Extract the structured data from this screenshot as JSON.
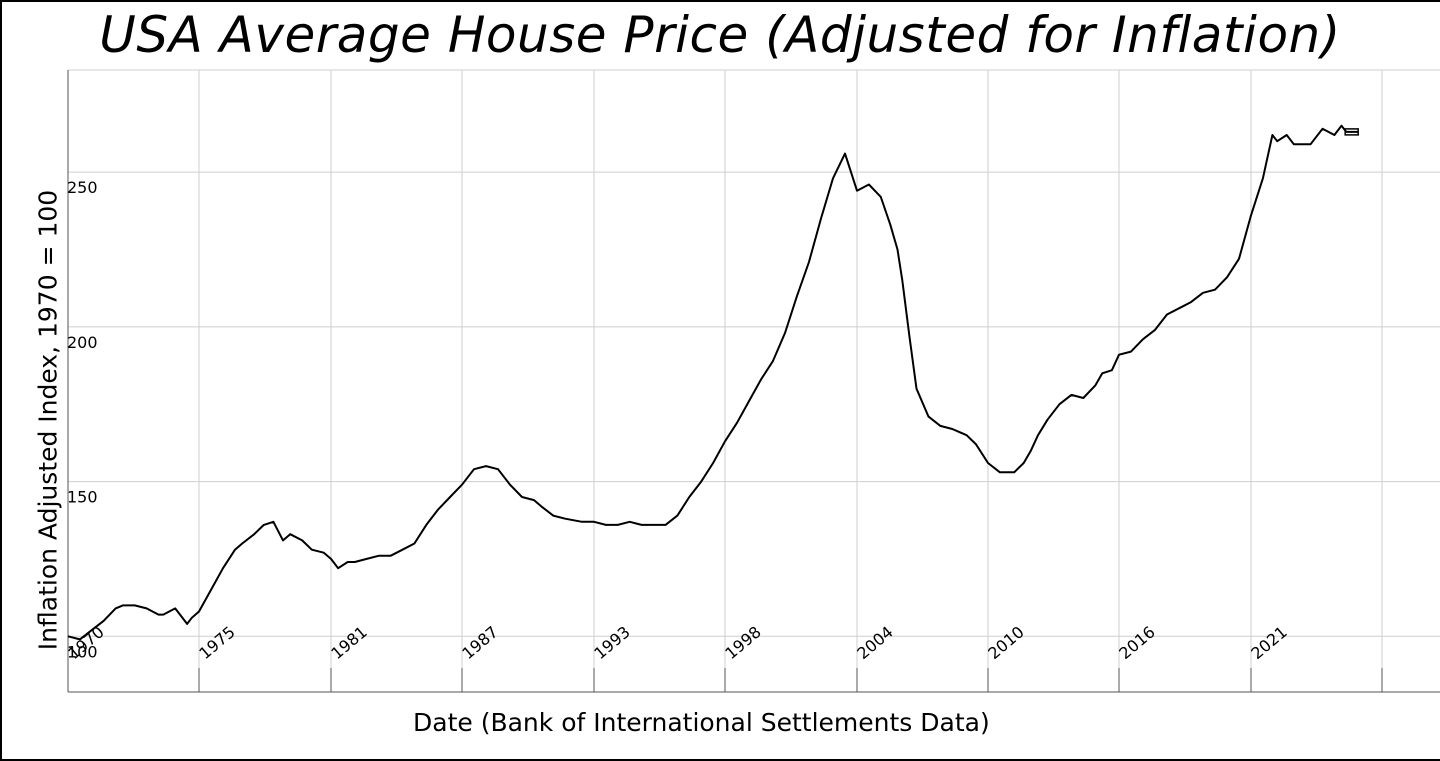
{
  "chart_data": {
    "type": "line",
    "title": "USA Average House Price (Adjusted for Inflation)",
    "xlabel": "Date (Bank of International Settlements Data)",
    "ylabel": "Inflation Adjusted Index, 1970 = 100",
    "x_tick_labels": [
      "1970",
      "1975",
      "1981",
      "1987",
      "1993",
      "1998",
      "2004",
      "2010",
      "2016",
      "2021"
    ],
    "y_ticks": [
      100,
      150,
      200,
      250
    ],
    "y_tick_labels": [
      "100",
      "150",
      "200",
      "250"
    ],
    "ylim": [
      82,
      283
    ],
    "xlim": [
      1970,
      2025
    ],
    "grid": true,
    "series": [
      {
        "x": [
          1970.0,
          1970.5,
          1971.0,
          1971.5,
          1972.0,
          1972.3,
          1972.8,
          1973.3,
          1973.8,
          1974.0,
          1974.5,
          1975.0,
          1975.2,
          1975.5,
          1976.0,
          1976.5,
          1977.0,
          1977.3,
          1977.8,
          1978.2,
          1978.6,
          1979.0,
          1979.3,
          1979.8,
          1980.2,
          1980.7,
          1981.0,
          1981.3,
          1981.7,
          1982.0,
          1982.5,
          1983.0,
          1983.5,
          1984.0,
          1984.5,
          1985.0,
          1985.5,
          1986.0,
          1986.5,
          1987.0,
          1987.5,
          1988.0,
          1988.5,
          1989.0,
          1989.5,
          1989.8,
          1990.3,
          1990.8,
          1991.5,
          1992.0,
          1992.5,
          1993.0,
          1993.5,
          1994.0,
          1994.5,
          1995.0,
          1995.5,
          1996.0,
          1996.5,
          1997.0,
          1997.5,
          1998.0,
          1998.5,
          1999.0,
          1999.5,
          2000.0,
          2000.5,
          2001.0,
          2001.5,
          2002.0,
          2002.5,
          2003.0,
          2003.5,
          2004.0,
          2004.4,
          2004.7,
          2004.9,
          2005.2,
          2005.5,
          2006.0,
          2006.5,
          2007.0,
          2007.3,
          2007.6,
          2008.0,
          2008.5,
          2009.0,
          2009.3,
          2009.6,
          2010.0,
          2010.3,
          2010.6,
          2011.0,
          2011.5,
          2012.0,
          2012.5,
          2013.0,
          2013.3,
          2013.7,
          2014.0,
          2014.5,
          2015.0,
          2015.5,
          2016.0,
          2016.5,
          2017.0,
          2017.5,
          2018.0,
          2018.5,
          2019.0,
          2019.5,
          2020.0,
          2020.4,
          2020.6,
          2021.0,
          2021.3,
          2022.0,
          2022.5,
          2023.0,
          2023.3,
          2023.5,
          2024.0
        ],
        "y": [
          100,
          99,
          102,
          105,
          109,
          110,
          110,
          109,
          107,
          107,
          109,
          104,
          106,
          108,
          115,
          122,
          128,
          130,
          133,
          136,
          137,
          131,
          133,
          131,
          128,
          127,
          125,
          122,
          124,
          124,
          125,
          126,
          126,
          128,
          130,
          136,
          141,
          145,
          149,
          154,
          155,
          154,
          149,
          145,
          144,
          142,
          139,
          138,
          137,
          137,
          136,
          136,
          137,
          136,
          136,
          136,
          139,
          145,
          150,
          156,
          163,
          169,
          176,
          183,
          189,
          198,
          210,
          221,
          235,
          248,
          256,
          244,
          246,
          242,
          233,
          225,
          215,
          197,
          180,
          171,
          168,
          167,
          166,
          165,
          162,
          156,
          153,
          153,
          153,
          156,
          160,
          165,
          170,
          175,
          178,
          177,
          181,
          185,
          186,
          191,
          192,
          196,
          199,
          204,
          206,
          208,
          211,
          212,
          216,
          222,
          236,
          248,
          262,
          260,
          262,
          259,
          259,
          264,
          262,
          265,
          263,
          263
        ]
      }
    ]
  }
}
